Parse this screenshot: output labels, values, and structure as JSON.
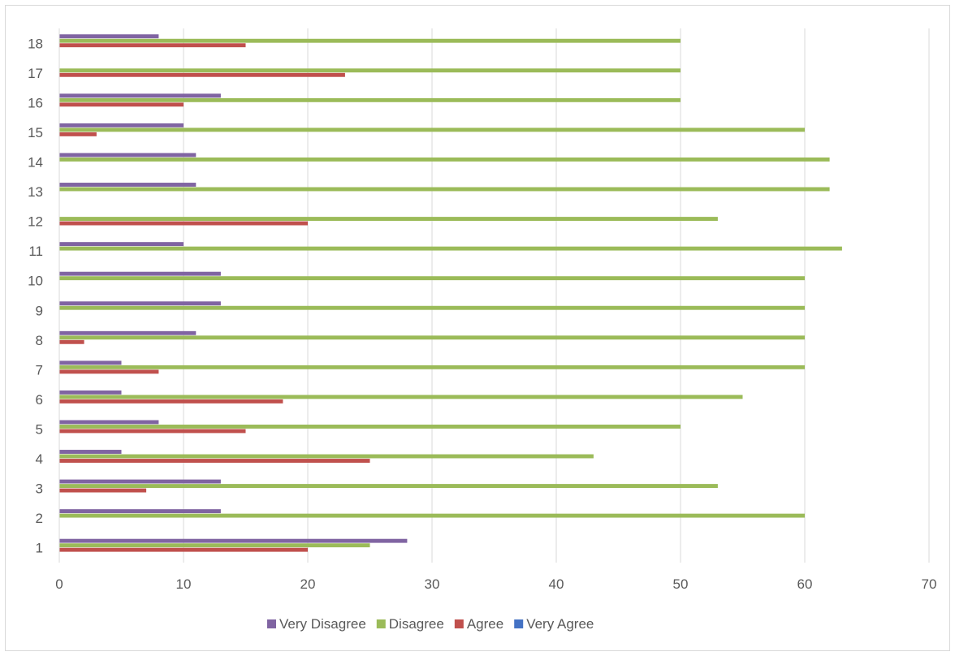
{
  "chart_data": {
    "type": "bar",
    "orientation": "horizontal",
    "title": "",
    "xlabel": "",
    "ylabel": "",
    "xlim": [
      0,
      70
    ],
    "x_ticks": [
      0,
      10,
      20,
      30,
      40,
      50,
      60,
      70
    ],
    "categories": [
      "1",
      "2",
      "3",
      "4",
      "5",
      "6",
      "7",
      "8",
      "9",
      "10",
      "11",
      "12",
      "13",
      "14",
      "15",
      "16",
      "17",
      "18"
    ],
    "grid": "vertical",
    "legend_position": "bottom",
    "series": [
      {
        "name": "Very Agree",
        "color": "#4472c4",
        "values": [
          0,
          0,
          0,
          0,
          0,
          0,
          0,
          0,
          0,
          0,
          0,
          0,
          0,
          0,
          0,
          0,
          0,
          0
        ]
      },
      {
        "name": "Agree",
        "color": "#c0504d",
        "values": [
          20,
          0,
          7,
          25,
          15,
          18,
          8,
          2,
          0,
          0,
          0,
          20,
          0,
          0,
          3,
          10,
          23,
          15
        ]
      },
      {
        "name": "Disagree",
        "color": "#9bbb59",
        "values": [
          25,
          60,
          53,
          43,
          50,
          55,
          60,
          60,
          60,
          60,
          63,
          53,
          62,
          62,
          60,
          50,
          50,
          50
        ]
      },
      {
        "name": "Very Disagree",
        "color": "#8064a2",
        "values": [
          28,
          13,
          13,
          5,
          8,
          5,
          5,
          11,
          13,
          13,
          10,
          0,
          11,
          11,
          10,
          13,
          0,
          8
        ]
      }
    ],
    "legend_order": [
      "Very Disagree",
      "Disagree",
      "Agree",
      "Very Agree"
    ]
  }
}
